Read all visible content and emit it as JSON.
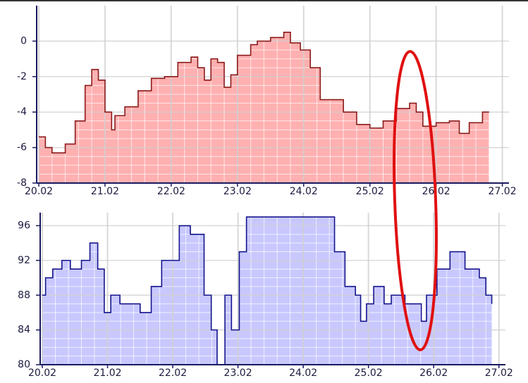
{
  "chart_data": [
    {
      "type": "area",
      "color": "#8b1a1a",
      "fill": "#ffb0b0",
      "x": [
        0,
        0.1,
        0.2,
        0.4,
        0.55,
        0.7,
        0.8,
        0.9,
        1.0,
        1.1,
        1.15,
        1.3,
        1.5,
        1.7,
        1.9,
        2.1,
        2.3,
        2.4,
        2.5,
        2.6,
        2.7,
        2.8,
        2.9,
        3.0,
        3.2,
        3.3,
        3.5,
        3.7,
        3.8,
        3.95,
        4.1,
        4.25,
        4.4,
        4.6,
        4.8,
        5.0,
        5.2,
        5.4,
        5.6,
        5.7,
        5.8,
        6.0,
        6.2,
        6.35,
        6.5,
        6.7,
        6.8
      ],
      "values": [
        -5.4,
        -6.0,
        -6.3,
        -5.8,
        -4.5,
        -2.5,
        -1.6,
        -2.2,
        -4.0,
        -5.0,
        -4.2,
        -3.7,
        -2.8,
        -2.1,
        -2.0,
        -1.2,
        -0.9,
        -1.5,
        -2.2,
        -1.0,
        -1.2,
        -2.6,
        -1.9,
        -0.8,
        -0.2,
        0,
        0.2,
        0.5,
        -0.1,
        -0.5,
        -1.5,
        -3.3,
        -3.3,
        -4.0,
        -4.7,
        -4.9,
        -4.5,
        -3.8,
        -3.5,
        -4.0,
        -4.8,
        -4.6,
        -4.5,
        -5.2,
        -4.6,
        -4.0,
        -4.0
      ],
      "xlim": [
        0,
        7.1
      ],
      "ylim": [
        -8,
        2
      ],
      "xticks": [
        {
          "value": 0,
          "label": "20.02"
        },
        {
          "value": 1,
          "label": "21.02"
        },
        {
          "value": 2,
          "label": "22.02"
        },
        {
          "value": 3,
          "label": "23.02"
        },
        {
          "value": 4,
          "label": "24.02"
        },
        {
          "value": 5,
          "label": "25.02"
        },
        {
          "value": 6,
          "label": "26.02"
        },
        {
          "value": 7,
          "label": "27.02"
        }
      ],
      "yticks": [
        -8,
        -6,
        -4,
        -2,
        0
      ],
      "grid": true
    },
    {
      "type": "area",
      "color": "#14148c",
      "fill": "#c8c8ff",
      "x": [
        0,
        0.05,
        0.16,
        0.3,
        0.43,
        0.6,
        0.73,
        0.85,
        0.95,
        1.05,
        1.19,
        1.4,
        1.5,
        1.67,
        1.83,
        2.1,
        2.27,
        2.48,
        2.59,
        2.68,
        2.8,
        2.9,
        3.02,
        3.13,
        4.32,
        4.48,
        4.64,
        4.8,
        4.88,
        4.97,
        5.08,
        5.24,
        5.35,
        5.45,
        5.56,
        5.72,
        5.81,
        5.89,
        6.05,
        6.25,
        6.37,
        6.48,
        6.7,
        6.8,
        6.89
      ],
      "values": [
        88,
        90,
        91,
        92,
        91,
        92,
        94,
        91,
        86,
        88,
        87,
        87,
        86,
        89,
        92,
        96,
        95,
        88,
        84,
        80,
        88,
        84,
        93,
        97,
        97,
        93,
        89,
        88,
        85,
        87,
        89,
        87,
        88,
        88,
        87,
        87,
        85,
        88,
        91,
        93,
        93,
        91,
        90,
        88,
        87
      ],
      "xlim": [
        0,
        7.1
      ],
      "ylim": [
        80,
        97.5
      ],
      "xticks": [
        {
          "value": 0,
          "label": "20.02"
        },
        {
          "value": 1,
          "label": "21.02"
        },
        {
          "value": 2,
          "label": "22.02"
        },
        {
          "value": 3,
          "label": "23.02"
        },
        {
          "value": 4,
          "label": "24.02"
        },
        {
          "value": 5,
          "label": "25.02"
        },
        {
          "value": 6,
          "label": "26.02"
        },
        {
          "value": 7,
          "label": "27.02"
        }
      ],
      "yticks": [
        80,
        84,
        88,
        92,
        96
      ],
      "grid": true
    }
  ]
}
